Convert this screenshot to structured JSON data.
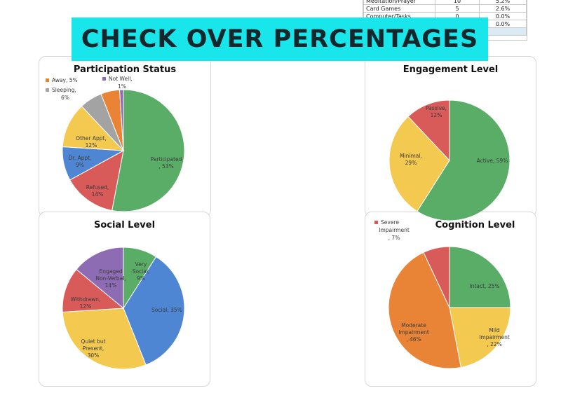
{
  "banner": "CHECK OVER PERCENTAGES",
  "sheet": {
    "rows": [
      [
        "Meditation/Prayer",
        "10",
        "5.2%"
      ],
      [
        "Card Games",
        "5",
        "2.6%"
      ],
      [
        "Computer/Tasks",
        "0",
        "0.0%"
      ],
      [
        "",
        "",
        "0.0%"
      ],
      [
        "",
        "",
        ""
      ]
    ]
  },
  "chart_data": [
    {
      "type": "pie",
      "title": "Participation Status",
      "slices": [
        {
          "label": "Participated",
          "value": 53,
          "text": [
            "Participated",
            ", 53%"
          ],
          "color": "#5aad67"
        },
        {
          "label": "Refused",
          "value": 14,
          "text": [
            "Refused,",
            "14%"
          ],
          "color": "#d85b5a"
        },
        {
          "label": "Dr. Appt",
          "value": 9,
          "text": [
            "Dr. Appt,",
            "9%"
          ],
          "color": "#4f86d4"
        },
        {
          "label": "Other Appt",
          "value": 12,
          "text": [
            "Other Appt,",
            "12%"
          ],
          "color": "#f3c94f"
        },
        {
          "label": "Sleeping",
          "value": 6,
          "text": [
            "Sleeping,",
            "6%"
          ],
          "color": "#a3a3a3"
        },
        {
          "label": "Away",
          "value": 5,
          "text": [
            "Away, 5%"
          ],
          "color": "#e98436"
        },
        {
          "label": "Not Well",
          "value": 1,
          "text": [
            "Not Well,",
            "1%"
          ],
          "color": "#8e6cb4"
        }
      ]
    },
    {
      "type": "pie",
      "title": "Engagement Level",
      "slices": [
        {
          "label": "Active",
          "value": 59,
          "text": [
            "Active, 59%"
          ],
          "color": "#5aad67"
        },
        {
          "label": "Minimal",
          "value": 29,
          "text": [
            "Minimal,",
            "29%"
          ],
          "color": "#f3c94f"
        },
        {
          "label": "Passive",
          "value": 12,
          "text": [
            "Passive,",
            "12%"
          ],
          "color": "#d85b5a"
        }
      ]
    },
    {
      "type": "pie",
      "title": "Social Level",
      "slices": [
        {
          "label": "Very Social",
          "value": 9,
          "text": [
            "Very",
            "Social,",
            "9%"
          ],
          "color": "#5aad67"
        },
        {
          "label": "Social",
          "value": 35,
          "text": [
            "Social, 35%"
          ],
          "color": "#4f86d4"
        },
        {
          "label": "Quiet but Present",
          "value": 30,
          "text": [
            "Quiet but",
            "Present,",
            "30%"
          ],
          "color": "#f3c94f"
        },
        {
          "label": "Withdrawn",
          "value": 12,
          "text": [
            "Withdrawn,",
            "12%"
          ],
          "color": "#d85b5a"
        },
        {
          "label": "Engaged Non-Verbal",
          "value": 14,
          "text": [
            "Engaged",
            "Non-Verbal,",
            "14%"
          ],
          "color": "#8e6cb4"
        }
      ]
    },
    {
      "type": "pie",
      "title": "Cognition Level",
      "slices": [
        {
          "label": "Intact",
          "value": 25,
          "text": [
            "Intact, 25%"
          ],
          "color": "#5aad67"
        },
        {
          "label": "Mild Impairment",
          "value": 22,
          "text": [
            "Mild",
            "Impairment",
            ", 22%"
          ],
          "color": "#f3c94f"
        },
        {
          "label": "Moderate Impairment",
          "value": 46,
          "text": [
            "Moderate",
            "Impairment",
            ", 46%"
          ],
          "color": "#e98436"
        },
        {
          "label": "Severe Impairment",
          "value": 7,
          "text": [
            "Severe",
            "Impairment",
            ", 7%"
          ],
          "color": "#d85b5a"
        }
      ]
    }
  ]
}
